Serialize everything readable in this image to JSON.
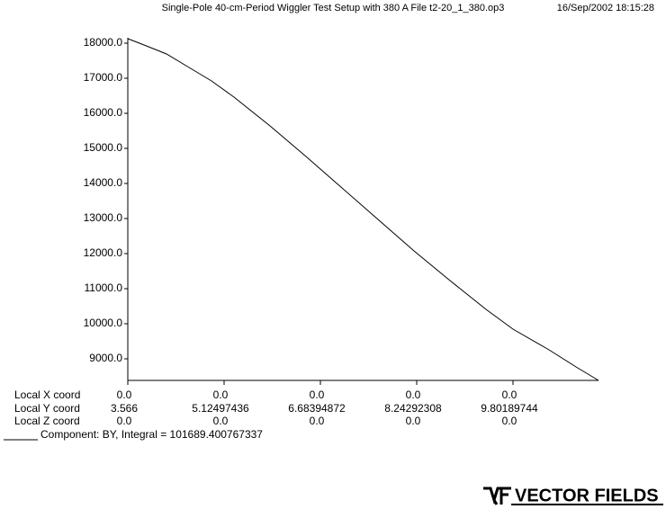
{
  "chart_data": {
    "type": "line",
    "title": "Single-Pole 40-cm-Period Wiggler Test Setup with 380 A  File t2-20_1_380.op3",
    "timestamp": "16/Sep/2002 18:15:28",
    "x": [
      3.566,
      3.828,
      4.193,
      4.557,
      4.921,
      5.285,
      5.868,
      6.451,
      7.034,
      7.617,
      8.199,
      8.782,
      9.365,
      9.802,
      10.385,
      10.822,
      11.186
    ],
    "series": [
      {
        "name": "Component:  BY, Integral = 101689.400767337",
        "color": "#000000",
        "values": [
          18128,
          17949,
          17692,
          17308,
          16923,
          16462,
          15641,
          14769,
          13872,
          12974,
          12077,
          11231,
          10410,
          9846,
          9256,
          8769,
          8385
        ]
      }
    ],
    "xlim": [
      3.566,
      11.186
    ],
    "xticks": [
      3.566,
      5.12497436,
      6.68394872,
      8.24292308,
      9.80189744
    ],
    "ylim": [
      8385,
      18154
    ],
    "yticks": [
      {
        "value": 9000,
        "label": "9000.0"
      },
      {
        "value": 10000,
        "label": "10000.0"
      },
      {
        "value": 11000,
        "label": "11000.0"
      },
      {
        "value": 12000,
        "label": "12000.0"
      },
      {
        "value": 13000,
        "label": "13000.0"
      },
      {
        "value": 14000,
        "label": "14000.0"
      },
      {
        "value": 15000,
        "label": "15000.0"
      },
      {
        "value": 16000,
        "label": "16000.0"
      },
      {
        "value": 17000,
        "label": "17000.0"
      },
      {
        "value": 18000,
        "label": "18000.0"
      }
    ],
    "coord_rows": [
      {
        "label": "Local X coord",
        "values": [
          "0.0",
          "0.0",
          "0.0",
          "0.0",
          "0.0"
        ]
      },
      {
        "label": "Local Y coord"
      },
      {
        "label": "Local Z coord",
        "values": [
          "0.0",
          "0.0",
          "0.0",
          "0.0",
          "0.0"
        ]
      }
    ],
    "logo": "VECTOR FIELDS"
  }
}
